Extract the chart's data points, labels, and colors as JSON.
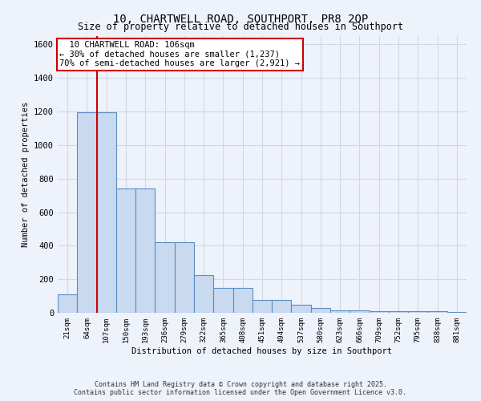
{
  "title1": "10, CHARTWELL ROAD, SOUTHPORT, PR8 2QP",
  "title2": "Size of property relative to detached houses in Southport",
  "xlabel": "Distribution of detached houses by size in Southport",
  "ylabel": "Number of detached properties",
  "categories": [
    "21sqm",
    "64sqm",
    "107sqm",
    "150sqm",
    "193sqm",
    "236sqm",
    "279sqm",
    "322sqm",
    "365sqm",
    "408sqm",
    "451sqm",
    "494sqm",
    "537sqm",
    "580sqm",
    "623sqm",
    "666sqm",
    "709sqm",
    "752sqm",
    "795sqm",
    "838sqm",
    "881sqm"
  ],
  "values": [
    110,
    1195,
    1195,
    740,
    740,
    420,
    420,
    225,
    150,
    150,
    75,
    75,
    50,
    30,
    15,
    15,
    10,
    10,
    10,
    10,
    5
  ],
  "bar_color": "#c9d9f0",
  "bar_edge_color": "#5b8ec4",
  "grid_color": "#d0d8e8",
  "background_color": "#eef2fa",
  "red_line_x": 1.5,
  "annotation_text": "  10 CHARTWELL ROAD: 106sqm\n← 30% of detached houses are smaller (1,237)\n70% of semi-detached houses are larger (2,921) →",
  "annotation_box_color": "#ffffff",
  "annotation_box_edge": "#cc0000",
  "footer1": "Contains HM Land Registry data © Crown copyright and database right 2025.",
  "footer2": "Contains public sector information licensed under the Open Government Licence v3.0.",
  "ylim": [
    0,
    1650
  ],
  "yticks": [
    0,
    200,
    400,
    600,
    800,
    1000,
    1200,
    1400,
    1600
  ]
}
